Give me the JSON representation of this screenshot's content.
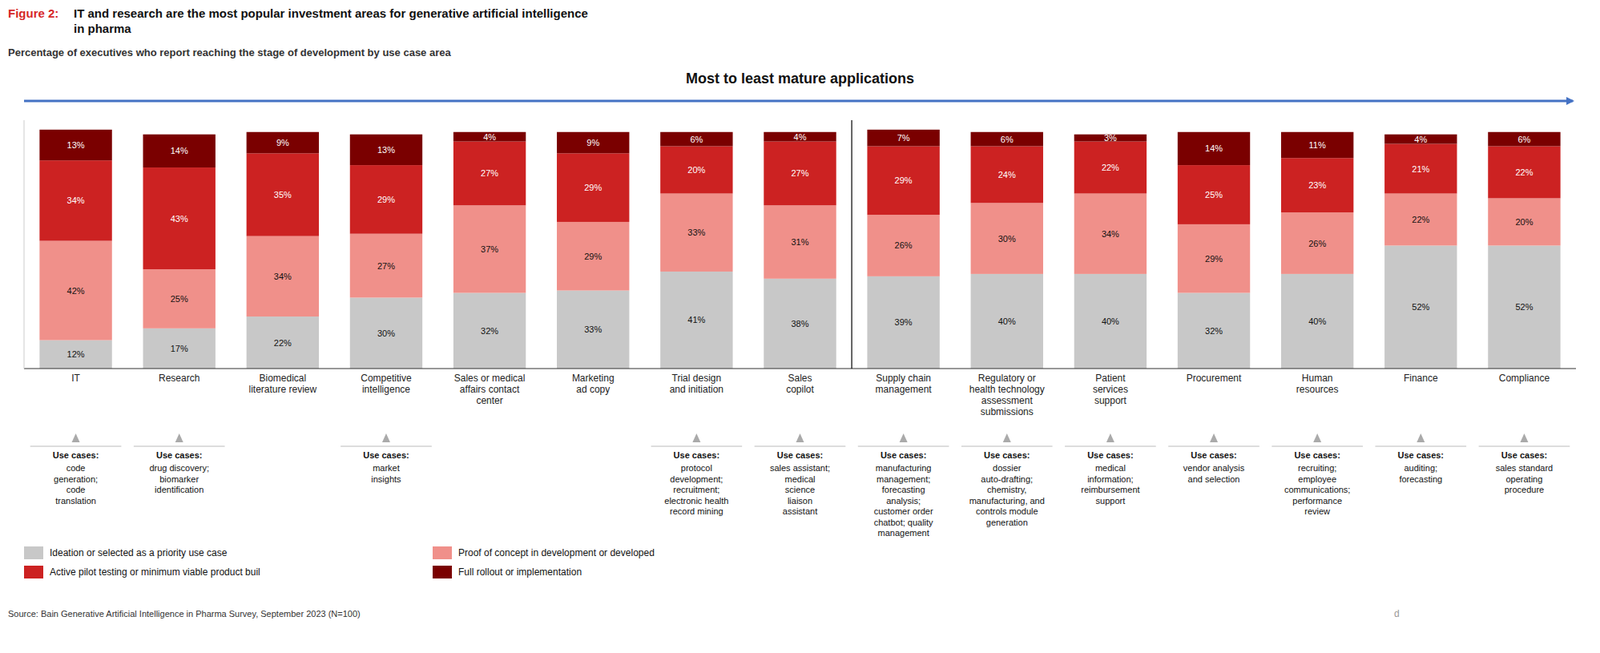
{
  "chart_data": {
    "type": "bar",
    "stacked": true,
    "data_labels": true,
    "tick_labels": "x",
    "legend": "bottom left",
    "title": "IT and research are the most popular investment areas for generative artificial intelligence\nin pharma",
    "subtitle": "Percentage of executives who report reaching the stage of development by use case area",
    "annotations": {
      "figure_label": "Figure 2:",
      "arrow_label": "Most to least mature applications",
      "source": "Source: Bain Generative Artificial Intelligence in Pharma Survey, September 2023 (N=100)",
      "watermark": "d",
      "separator_after": "Sales\ncopilot",
      "use_cases": [
        "Use cases:\ncode\ngeneration;\ncode\ntranslation",
        "Use cases:\ndrug discovery;\nbiomarker\nidentification",
        null,
        "Use cases:\nmarket\ninsights",
        null,
        null,
        "Use cases:\nprotocol\ndevelopment;\nrecruitment;\nelectronic health\nrecord mining",
        "Use cases:\nsales assistant;\nmedical\nscience\nliaison\nassistant",
        "Use cases:\nmanufacturing\nmanagement;\nforecasting\nanalysis;\ncustomer order\nchatbot; quality\nmanagement",
        "Use cases:\ndossier\nauto-drafting;\nchemistry,\nmanufacturing, and\ncontrols module\ngeneration",
        "Use cases:\nmedical\ninformation;\nreimbursement\nsupport",
        "Use cases:\nvendor analysis\nand selection",
        "Use cases:\nrecruiting;\nemployee\ncommunications;\nperformance\nreview",
        "Use cases:\nauditing;\nforecasting",
        "Use cases:\nsales standard\noperating\nprocedure"
      ]
    },
    "categories": [
      "IT",
      "Research",
      "Biomedical\nliterature review",
      "Competitive\nintelligence",
      "Sales or medical\naffairs contact\ncenter",
      "Marketing\nad copy",
      "Trial design\nand initiation",
      "Sales\ncopilot",
      "Supply chain\nmanagement",
      "Regulatory or\nhealth technology\nassessment\nsubmissions",
      "Patient\nservices\nsupport",
      "Procurement",
      "Human\nresources",
      "Finance",
      "Compliance"
    ],
    "ylim": [
      0,
      105
    ],
    "series": [
      {
        "name": "Ideation or selected as a priority use case",
        "color": "#c8c8c8",
        "values": [
          12,
          17,
          22,
          30,
          32,
          33,
          41,
          38,
          39,
          40,
          40,
          32,
          40,
          52,
          52
        ],
        "value_labels": [
          "12%",
          "17%",
          "22%",
          "30%",
          "32%",
          "33%",
          "41%",
          "38%",
          "39%",
          "40%",
          "40%",
          "32%",
          "40%",
          "52%",
          "52%"
        ]
      },
      {
        "name": "Proof of concept in development or developed",
        "color": "#f0908a",
        "values": [
          42,
          25,
          34,
          27,
          37,
          29,
          33,
          31,
          26,
          30,
          34,
          29,
          26,
          22,
          20
        ],
        "value_labels": [
          "42%",
          "25%",
          "34%",
          "27%",
          "37%",
          "29%",
          "33%",
          "31%",
          "26%",
          "30%",
          "34%",
          "29%",
          "26%",
          "22%",
          "20%"
        ]
      },
      {
        "name": "Active pilot testing or minimum viable product buil",
        "color": "#cc2222",
        "values": [
          34,
          43,
          35,
          29,
          27,
          29,
          20,
          27,
          29,
          24,
          22,
          25,
          23,
          21,
          22
        ],
        "value_labels": [
          "34%",
          "43%",
          "35%",
          "29%",
          "27%",
          "29%",
          "20%",
          "27%",
          "29%",
          "24%",
          "22%",
          "25%",
          "23%",
          "21%",
          "22%"
        ]
      },
      {
        "name": "Full rollout or implementation",
        "color": "#7a0000",
        "values": [
          13,
          14,
          9,
          13,
          4,
          9,
          6,
          4,
          7,
          6,
          3,
          14,
          11,
          4,
          6
        ],
        "value_labels": [
          "13%",
          "14%",
          "9%",
          "13%",
          "4%",
          "9%",
          "6%",
          "4%",
          "7%",
          "6%",
          "3%",
          "14%",
          "11%",
          "4%",
          "6%"
        ]
      }
    ]
  }
}
